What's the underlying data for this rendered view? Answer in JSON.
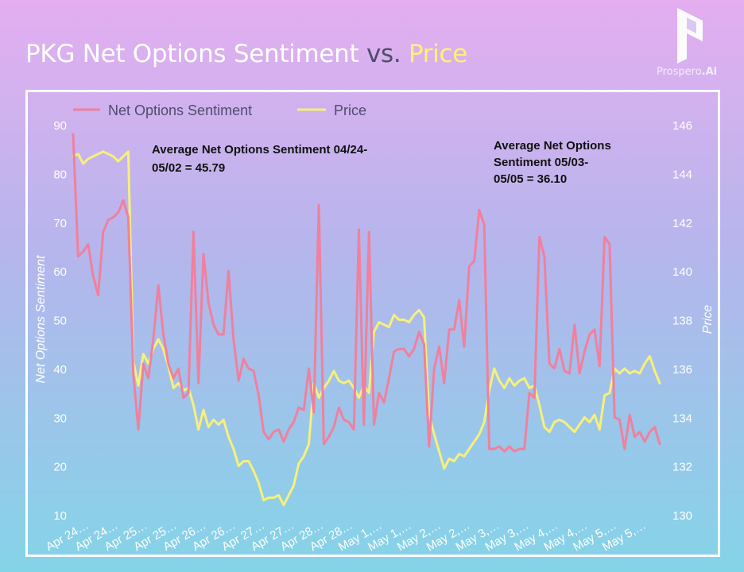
{
  "title": {
    "main": "PKG Net Options Sentiment",
    "vs": "vs.",
    "price": "Price"
  },
  "brand": {
    "name": "Prospero",
    "suffix": ".Ai"
  },
  "colors": {
    "sentiment": "#f0809e",
    "price": "#f7f07a",
    "axis_text": "#ffffff",
    "vs_text": "#4e4e6a",
    "price_title": "#fff176"
  },
  "icons": [
    "prospero-logo-icon"
  ],
  "chart_data": {
    "type": "line",
    "legend_position": "top-left",
    "grid": false,
    "y_left": {
      "label": "Net Options Sentiment",
      "range": [
        10,
        90
      ],
      "ticks": [
        10,
        20,
        30,
        40,
        50,
        60,
        70,
        80,
        90
      ]
    },
    "y_right": {
      "label": "Price",
      "range": [
        130,
        146
      ],
      "ticks": [
        130,
        132,
        134,
        136,
        138,
        140,
        142,
        144,
        146
      ]
    },
    "x_tick_labels": [
      "Apr 24…",
      "Apr 24…",
      "Apr 25…",
      "Apr 25…",
      "Apr 26…",
      "Apr 26…",
      "Apr 27…",
      "Apr 27…",
      "Apr 28…",
      "Apr 28…",
      "May 1,…",
      "May 1,…",
      "May 2,…",
      "May 2,…",
      "May 3,…",
      "May 3,…",
      "May 4,…",
      "May 4,…",
      "May 5,…",
      "May 5,…"
    ],
    "annotations": [
      "Average Net Options Sentiment 04/24-05/02 = 45.79",
      "Average Net Options Sentiment 05/03-05/05 = 36.10"
    ],
    "series": [
      {
        "name": "Net Options Sentiment",
        "axis": "left",
        "values": [
          88,
          63,
          64,
          65.5,
          59,
          55,
          68,
          70.5,
          71,
          72,
          74.5,
          71,
          39,
          27.5,
          41,
          38,
          46,
          57,
          47,
          41,
          38,
          40,
          34,
          35,
          68,
          37,
          63.5,
          53.5,
          49,
          47,
          47,
          60,
          46,
          37.5,
          42,
          40,
          39.5,
          34.5,
          27,
          25.5,
          27,
          27.5,
          25,
          27.5,
          29,
          32,
          31.5,
          40,
          31,
          73.5,
          24.5,
          26,
          28,
          32,
          29.5,
          29,
          27.5,
          68.5,
          28.5,
          68,
          28.5,
          35,
          33,
          38,
          43.5,
          44,
          44,
          42.5,
          44,
          47.5,
          45,
          24,
          40,
          44.5,
          37,
          48,
          48,
          54,
          44.5,
          61,
          62,
          72.5,
          69.5,
          23.5,
          23.5,
          24,
          23,
          24,
          23,
          23.5,
          23.5,
          35,
          34,
          67,
          63,
          41,
          40,
          44,
          39.5,
          39,
          49,
          39,
          43.5,
          47,
          48,
          40.5,
          67,
          65.5,
          30,
          29.5,
          23.5,
          30.5,
          26,
          27,
          25,
          27,
          28,
          24.5
        ]
      },
      {
        "name": "Price",
        "axis": "right",
        "values": [
          144.7,
          144.8,
          144.4,
          144.6,
          144.7,
          144.8,
          144.9,
          144.8,
          144.7,
          144.5,
          144.7,
          144.9,
          136.3,
          135.3,
          136.6,
          136.2,
          136.8,
          137.2,
          136.8,
          136.1,
          135.2,
          135.4,
          135.1,
          135.2,
          134.5,
          133.5,
          134.3,
          133.6,
          133.9,
          133.7,
          133.9,
          133.2,
          132.7,
          132.0,
          132.2,
          132.2,
          131.8,
          131.3,
          130.6,
          130.7,
          130.7,
          130.8,
          130.4,
          130.8,
          131.2,
          132.1,
          132.4,
          132.9,
          135.4,
          134.8,
          135.2,
          135.5,
          135.9,
          135.5,
          135.4,
          135.5,
          135.2,
          134.8,
          135.3,
          135.0,
          137.5,
          137.9,
          137.8,
          137.7,
          138.2,
          138.0,
          138.0,
          137.9,
          138.2,
          138.4,
          138.1,
          134.1,
          133.3,
          132.6,
          131.9,
          132.3,
          132.2,
          132.5,
          132.4,
          132.7,
          133.0,
          133.3,
          133.8,
          135.1,
          136.0,
          135.5,
          135.2,
          135.6,
          135.3,
          135.5,
          135.6,
          135.2,
          135.3,
          134.5,
          133.6,
          133.4,
          133.8,
          133.9,
          133.8,
          133.6,
          133.4,
          133.7,
          134.0,
          133.8,
          134.1,
          133.5,
          134.9,
          135.0,
          136.0,
          135.8,
          136.0,
          135.8,
          135.9,
          135.8,
          136.2,
          136.5,
          135.9,
          135.4
        ]
      }
    ]
  }
}
